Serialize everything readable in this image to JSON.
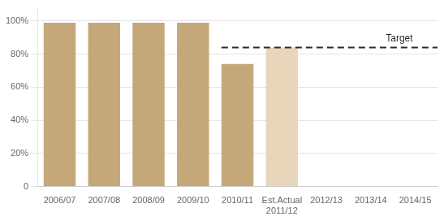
{
  "chart_data": {
    "type": "bar",
    "categories": [
      "2006/07",
      "2007/08",
      "2008/09",
      "2009/10",
      "2010/11",
      "Est.Actual\n2011/12",
      "2012/13",
      "2013/14",
      "2014/15"
    ],
    "values": [
      99,
      99,
      99,
      99,
      74,
      84,
      0,
      0,
      0
    ],
    "colors": [
      "#C4A87A",
      "#C4A87A",
      "#C4A87A",
      "#C4A87A",
      "#C4A87A",
      "#E8D5BA",
      null,
      null,
      null
    ],
    "target": {
      "value": 84,
      "label": "Target",
      "color": "#2a2a2a",
      "from": "2010/11"
    },
    "ylim": [
      0,
      108
    ],
    "yticks": [
      0,
      {
        "value": 20,
        "label": "20%"
      },
      {
        "value": 40,
        "label": "40%"
      },
      {
        "value": 60,
        "label": "60%"
      },
      {
        "value": 80,
        "label": "80%"
      },
      {
        "value": 100,
        "label": "100%"
      }
    ],
    "grid": true
  }
}
